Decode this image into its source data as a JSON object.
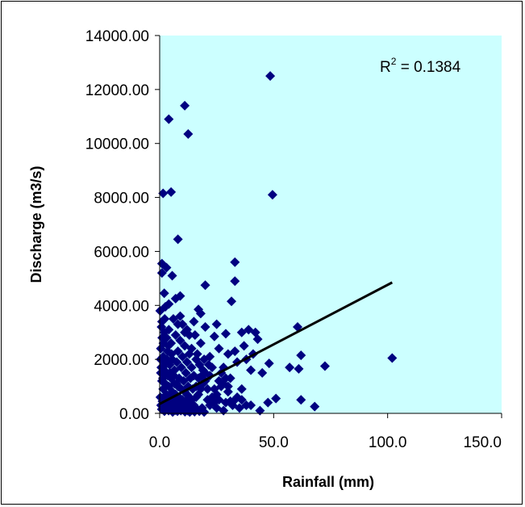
{
  "chart_data": {
    "type": "scatter",
    "xlabel": "Rainfall (mm)",
    "ylabel": "Discharge (m3/s)",
    "xlim": [
      0,
      150
    ],
    "ylim": [
      0,
      14000
    ],
    "x_ticks": [
      "0.0",
      "50.0",
      "100.0",
      "150.0"
    ],
    "y_ticks": [
      "0.00",
      "2000.00",
      "4000.00",
      "6000.00",
      "8000.00",
      "10000.00",
      "12000.00",
      "14000.00"
    ],
    "grid": false,
    "legend": "none",
    "plot_background": "#ccffff",
    "marker_color": "#000080",
    "trendline_color": "#000000",
    "annotation": {
      "prefix": "R",
      "superscript": "2",
      "value": " = 0.1384"
    },
    "trendline": {
      "x": [
        0,
        102
      ],
      "y": [
        350,
        4850
      ]
    },
    "points": [
      [
        48.5,
        12500
      ],
      [
        11,
        11400
      ],
      [
        4,
        10900
      ],
      [
        12.5,
        10350
      ],
      [
        1.5,
        8150
      ],
      [
        5,
        8200
      ],
      [
        49.5,
        8100
      ],
      [
        8,
        6450
      ],
      [
        33,
        5600
      ],
      [
        1,
        5550
      ],
      [
        3,
        5400
      ],
      [
        1,
        5200
      ],
      [
        5.5,
        5100
      ],
      [
        33,
        4900
      ],
      [
        20,
        4750
      ],
      [
        2,
        4450
      ],
      [
        9,
        4350
      ],
      [
        7,
        4250
      ],
      [
        4,
        4050
      ],
      [
        2.5,
        3950
      ],
      [
        17,
        3850
      ],
      [
        31.5,
        4150
      ],
      [
        36,
        3000
      ],
      [
        39,
        3100
      ],
      [
        42,
        3000
      ],
      [
        43,
        2750
      ],
      [
        29,
        2950
      ],
      [
        24,
        2850
      ],
      [
        60.5,
        3200
      ],
      [
        62,
        2150
      ],
      [
        61,
        1650
      ],
      [
        102,
        2050
      ],
      [
        72.5,
        1750
      ],
      [
        57,
        1700
      ],
      [
        48,
        1850
      ],
      [
        51,
        550
      ],
      [
        47.5,
        400
      ],
      [
        62,
        500
      ],
      [
        68,
        250
      ],
      [
        40,
        300
      ],
      [
        44,
        100
      ],
      [
        31,
        450
      ],
      [
        35,
        200
      ],
      [
        18,
        3700
      ],
      [
        15,
        3400
      ],
      [
        20,
        3200
      ],
      [
        10,
        3300
      ],
      [
        12,
        3100
      ],
      [
        25,
        3300
      ],
      [
        26,
        2400
      ],
      [
        30,
        2200
      ],
      [
        33,
        2300
      ],
      [
        34,
        1900
      ],
      [
        38,
        2000
      ],
      [
        40,
        1600
      ],
      [
        45,
        1500
      ],
      [
        22,
        2100
      ],
      [
        28,
        1700
      ],
      [
        37,
        2500
      ],
      [
        41,
        2200
      ],
      [
        27,
        1000
      ],
      [
        30,
        800
      ],
      [
        23,
        600
      ],
      [
        26,
        1200
      ],
      [
        29,
        1300
      ],
      [
        33,
        500
      ],
      [
        36,
        900
      ],
      [
        20,
        1500
      ],
      [
        21,
        900
      ],
      [
        24,
        400
      ],
      [
        18,
        2600
      ],
      [
        16,
        2000
      ],
      [
        14,
        2400
      ],
      [
        19,
        1100
      ],
      [
        17,
        700
      ],
      [
        25,
        200
      ],
      [
        28,
        100
      ],
      [
        22,
        300
      ],
      [
        1,
        3400
      ],
      [
        2,
        3000
      ],
      [
        3,
        2800
      ],
      [
        4,
        3100
      ],
      [
        5,
        2600
      ],
      [
        6,
        3500
      ],
      [
        7,
        2900
      ],
      [
        8,
        2300
      ],
      [
        9,
        2700
      ],
      [
        10,
        2100
      ],
      [
        11,
        2500
      ],
      [
        12,
        1900
      ],
      [
        13,
        2200
      ],
      [
        14,
        1700
      ],
      [
        15,
        1400
      ],
      [
        0.5,
        2400
      ],
      [
        1.5,
        2100
      ],
      [
        2.5,
        1800
      ],
      [
        3.5,
        2300
      ],
      [
        4.5,
        1500
      ],
      [
        5.5,
        2000
      ],
      [
        6.5,
        1600
      ],
      [
        7.5,
        1900
      ],
      [
        8.5,
        1300
      ],
      [
        9.5,
        1700
      ],
      [
        10.5,
        1200
      ],
      [
        11.5,
        1500
      ],
      [
        12.5,
        1000
      ],
      [
        13.5,
        1300
      ],
      [
        14.5,
        900
      ],
      [
        0.5,
        1500
      ],
      [
        1,
        1200
      ],
      [
        1.5,
        900
      ],
      [
        2,
        1600
      ],
      [
        2.5,
        1100
      ],
      [
        3,
        700
      ],
      [
        3.5,
        1400
      ],
      [
        4,
        1000
      ],
      [
        4.5,
        600
      ],
      [
        5,
        1300
      ],
      [
        5.5,
        800
      ],
      [
        6,
        500
      ],
      [
        6.5,
        1100
      ],
      [
        7,
        700
      ],
      [
        7.5,
        400
      ],
      [
        8,
        1000
      ],
      [
        8.5,
        600
      ],
      [
        9,
        300
      ],
      [
        9.5,
        900
      ],
      [
        10,
        500
      ],
      [
        10.5,
        200
      ],
      [
        11,
        800
      ],
      [
        11.5,
        400
      ],
      [
        12,
        700
      ],
      [
        12.5,
        300
      ],
      [
        13,
        600
      ],
      [
        13.5,
        200
      ],
      [
        14,
        500
      ],
      [
        15,
        300
      ],
      [
        16,
        600
      ],
      [
        0.3,
        600
      ],
      [
        0.6,
        300
      ],
      [
        0.9,
        150
      ],
      [
        1.2,
        450
      ],
      [
        1.8,
        250
      ],
      [
        2.1,
        80
      ],
      [
        2.4,
        500
      ],
      [
        2.7,
        200
      ],
      [
        3.3,
        350
      ],
      [
        3.9,
        100
      ],
      [
        4.2,
        300
      ],
      [
        4.8,
        150
      ],
      [
        5.1,
        400
      ],
      [
        5.7,
        50
      ],
      [
        6.3,
        250
      ],
      [
        6.9,
        120
      ],
      [
        7.2,
        350
      ],
      [
        7.8,
        80
      ],
      [
        8.4,
        200
      ],
      [
        9.3,
        100
      ],
      [
        10.2,
        150
      ],
      [
        11.1,
        60
      ],
      [
        12.3,
        100
      ],
      [
        13.2,
        50
      ],
      [
        14.1,
        120
      ],
      [
        15.3,
        60
      ],
      [
        16.5,
        150
      ],
      [
        17.4,
        80
      ],
      [
        18.6,
        200
      ],
      [
        19.5,
        50
      ],
      [
        0.2,
        3800
      ],
      [
        0.8,
        3200
      ],
      [
        1.6,
        2600
      ],
      [
        2.2,
        3500
      ],
      [
        3.2,
        2000
      ],
      [
        3.8,
        2500
      ],
      [
        4.4,
        1800
      ],
      [
        5.2,
        2200
      ],
      [
        6.2,
        1400
      ],
      [
        7.4,
        1100
      ],
      [
        0.4,
        2000
      ],
      [
        0.7,
        1700
      ],
      [
        1.1,
        2800
      ],
      [
        1.4,
        1300
      ],
      [
        1.9,
        1900
      ],
      [
        16,
        1000
      ],
      [
        17,
        1300
      ],
      [
        18,
        900
      ],
      [
        19,
        1600
      ],
      [
        20,
        1200
      ],
      [
        21,
        500
      ],
      [
        22,
        1400
      ],
      [
        23,
        1700
      ],
      [
        24,
        900
      ],
      [
        25,
        700
      ],
      [
        26,
        500
      ],
      [
        27,
        1500
      ],
      [
        28,
        1100
      ],
      [
        29,
        400
      ],
      [
        30,
        1000
      ],
      [
        31,
        1300
      ],
      [
        32,
        300
      ],
      [
        34,
        600
      ],
      [
        36,
        500
      ],
      [
        38,
        300
      ],
      [
        15.5,
        2900
      ],
      [
        13,
        2900
      ],
      [
        11,
        3000
      ],
      [
        9,
        3600
      ],
      [
        8,
        3300
      ],
      [
        16.5,
        2200
      ],
      [
        17.5,
        1800
      ],
      [
        18.5,
        1400
      ],
      [
        19.5,
        2000
      ],
      [
        21.5,
        1800
      ]
    ]
  }
}
